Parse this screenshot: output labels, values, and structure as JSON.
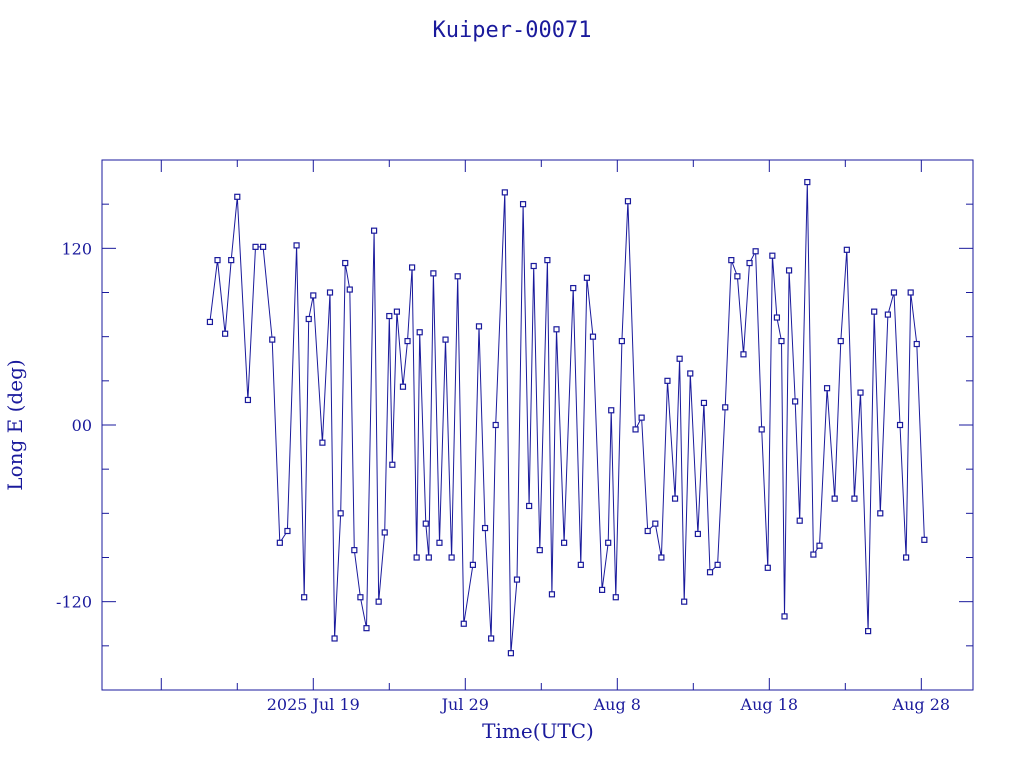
{
  "chart_data": {
    "type": "line",
    "title": "Kuiper-00071",
    "xlabel": "Time(UTC)",
    "ylabel": "Long E (deg)",
    "xlim_days": [
      -3.9,
      53.4
    ],
    "xlim_dates": [
      "2025-07-08",
      "2025-09-05"
    ],
    "ylim": [
      -180,
      180
    ],
    "x_ticks": [
      {
        "day": 10,
        "label": "2025 Jul 19"
      },
      {
        "day": 20,
        "label": "Jul 29"
      },
      {
        "day": 30,
        "label": "Aug  8"
      },
      {
        "day": 40,
        "label": "Aug 18"
      },
      {
        "day": 50,
        "label": "Aug 28"
      }
    ],
    "y_ticks": [
      {
        "value": 120,
        "label": "120"
      },
      {
        "value": 0,
        "label": "00"
      },
      {
        "value": -120,
        "label": "-120"
      }
    ],
    "grid": false,
    "series": [
      {
        "color": "#1a1a9c",
        "x": [
          3.2,
          3.7,
          4.2,
          4.6,
          5.0,
          5.7,
          6.2,
          6.7,
          7.3,
          7.8,
          8.3,
          8.9,
          9.4,
          9.7,
          10.0,
          10.6,
          11.1,
          11.4,
          11.8,
          12.1,
          12.4,
          12.7,
          13.1,
          13.5,
          14.0,
          14.3,
          14.7,
          15.0,
          15.2,
          15.5,
          15.9,
          16.2,
          16.5,
          16.8,
          17.0,
          17.4,
          17.6,
          17.9,
          18.3,
          18.7,
          19.1,
          19.5,
          19.9,
          20.5,
          20.9,
          21.3,
          21.7,
          22.0,
          22.6,
          23.0,
          23.4,
          23.8,
          24.2,
          24.5,
          24.9,
          25.4,
          25.7,
          26.0,
          26.5,
          27.1,
          27.6,
          28.0,
          28.4,
          29.0,
          29.4,
          29.6,
          29.9,
          30.3,
          30.7,
          31.2,
          31.6,
          32.0,
          32.5,
          32.9,
          33.3,
          33.8,
          34.1,
          34.4,
          34.8,
          35.3,
          35.7,
          36.1,
          36.6,
          37.1,
          37.5,
          37.9,
          38.3,
          38.7,
          39.1,
          39.5,
          39.9,
          40.2,
          40.5,
          40.8,
          41.0,
          41.3,
          41.7,
          42.0,
          42.5,
          42.9,
          43.3,
          43.8,
          44.3,
          44.7,
          45.1,
          45.6,
          46.0,
          46.5,
          46.9,
          47.3,
          47.8,
          48.2,
          48.6,
          49.0,
          49.3,
          49.7,
          50.2
        ],
        "y": [
          70,
          112,
          62,
          112,
          155,
          17,
          121,
          121,
          58,
          -80,
          -72,
          122,
          -117,
          72,
          88,
          -12,
          90,
          -145,
          -60,
          110,
          92,
          -85,
          -117,
          -138,
          132,
          -120,
          -73,
          74,
          -27,
          77,
          26,
          57,
          107,
          -90,
          63,
          -67,
          -90,
          103,
          -80,
          58,
          -90,
          101,
          -135,
          -95,
          67,
          -70,
          -145,
          0,
          158,
          -155,
          -105,
          150,
          -55,
          108,
          -85,
          112,
          -115,
          65,
          -80,
          93,
          -95,
          100,
          60,
          -112,
          -80,
          10,
          -117,
          57,
          152,
          -3,
          5,
          -72,
          -67,
          -90,
          30,
          -50,
          45,
          -120,
          35,
          -74,
          15,
          -100,
          -95,
          12,
          112,
          101,
          48,
          110,
          118,
          -3,
          -97,
          115,
          73,
          57,
          -130,
          105,
          16,
          -65,
          165,
          -88,
          -82,
          25,
          -50,
          57,
          119,
          -50,
          22,
          -140,
          77,
          -60,
          75,
          90,
          0,
          -90,
          90,
          55,
          -78
        ]
      }
    ]
  }
}
